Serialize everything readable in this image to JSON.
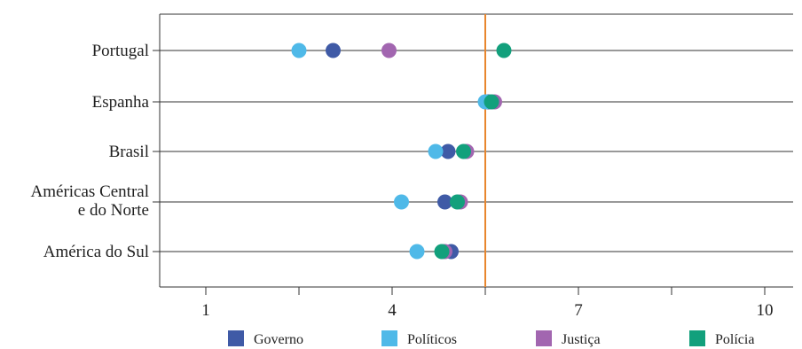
{
  "chart_data": {
    "type": "scatter",
    "categories": [
      "Portugal",
      "Espanha",
      "Brasil",
      "Américas Central e do Norte",
      "América do Sul"
    ],
    "category_lines": [
      [
        "Portugal"
      ],
      [
        "Espanha"
      ],
      [
        "Brasil"
      ],
      [
        "Américas Central",
        "e do Norte"
      ],
      [
        "América do Sul"
      ]
    ],
    "x_ticks": [
      1,
      2.5,
      4,
      5.5,
      7,
      8.5,
      10
    ],
    "x_tick_labels": [
      "1",
      "",
      "4",
      "",
      "7",
      "",
      "10"
    ],
    "xlim": [
      0.25,
      10.5
    ],
    "reference_line": 5.5,
    "series": [
      {
        "name": "Governo",
        "color": "#3f5aa6",
        "values": [
          3.05,
          5.55,
          4.9,
          4.85,
          4.95
        ]
      },
      {
        "name": "Políticos",
        "color": "#4fb9e8",
        "values": [
          2.5,
          5.5,
          4.7,
          4.15,
          4.4
        ]
      },
      {
        "name": "Justiça",
        "color": "#a266b0",
        "values": [
          3.95,
          5.65,
          5.2,
          5.1,
          4.85
        ]
      },
      {
        "name": "Polícia",
        "color": "#12a07c",
        "values": [
          5.8,
          5.6,
          5.15,
          5.05,
          4.8
        ]
      }
    ],
    "reference_color": "#e8862e",
    "legend_position": "bottom",
    "grid": "horizontal lines at categories"
  }
}
